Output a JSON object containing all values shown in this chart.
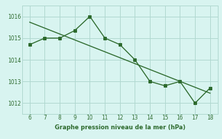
{
  "x": [
    6,
    7,
    8,
    9,
    10,
    11,
    12,
    13,
    14,
    15,
    16,
    17,
    18
  ],
  "y": [
    1014.7,
    1015.0,
    1015.0,
    1015.35,
    1016.0,
    1015.0,
    1014.7,
    1014.0,
    1013.0,
    1012.8,
    1013.0,
    1012.0,
    1012.7
  ],
  "line_color": "#2d6a2d",
  "bg_color": "#d8f4f0",
  "grid_color": "#b0d8d0",
  "xlabel": "Graphe pression niveau de la mer (hPa)",
  "xlim": [
    5.5,
    18.5
  ],
  "ylim": [
    1011.5,
    1016.5
  ],
  "yticks": [
    1012,
    1013,
    1014,
    1015,
    1016
  ],
  "xticks": [
    6,
    7,
    8,
    9,
    10,
    11,
    12,
    13,
    14,
    15,
    16,
    17,
    18
  ],
  "marker_size": 4,
  "line_width": 1.0,
  "trend_color": "#2d6a2d"
}
